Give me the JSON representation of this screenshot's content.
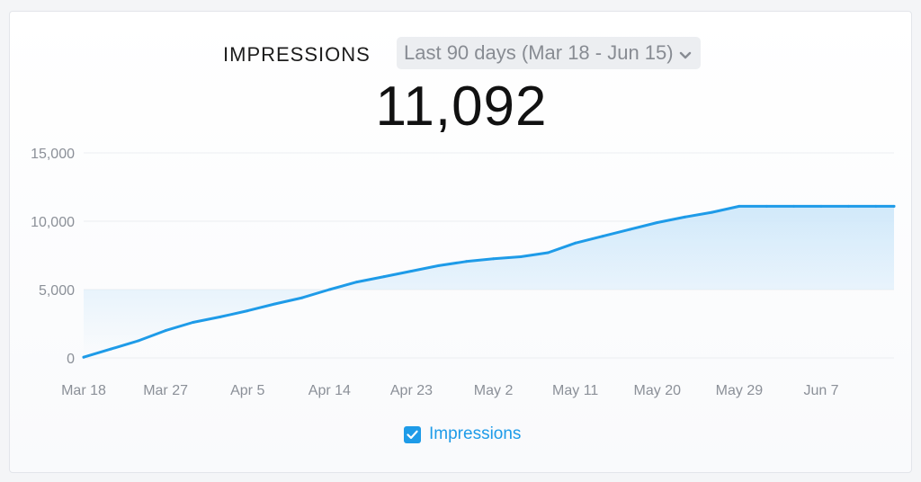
{
  "header": {
    "metric_title": "IMPRESSIONS",
    "date_range": "Last 90 days (Mar 18 - Jun 15)",
    "total_value": "11,092"
  },
  "legend": {
    "label": "Impressions",
    "checked": true,
    "icon": "checkbox-checked-icon"
  },
  "colors": {
    "series": "#1e9be8",
    "fill": "#d6ecfb",
    "grid": "#eceef1",
    "text_muted": "#8b9098"
  },
  "chart_data": {
    "type": "area",
    "title": "",
    "xlabel": "",
    "ylabel": "",
    "ylim": [
      0,
      15000
    ],
    "xlim": [
      "2024-03-18",
      "2024-06-15"
    ],
    "grid": "horizontal",
    "legend_position": "bottom-center",
    "y_ticks": [
      {
        "value": 0,
        "label": "0"
      },
      {
        "value": 5000,
        "label": "5,000"
      },
      {
        "value": 10000,
        "label": "10,000"
      },
      {
        "value": 15000,
        "label": "15,000"
      }
    ],
    "x_ticks": [
      {
        "date": "2024-03-18",
        "label": "Mar 18"
      },
      {
        "date": "2024-03-27",
        "label": "Mar 27"
      },
      {
        "date": "2024-04-05",
        "label": "Apr 5"
      },
      {
        "date": "2024-04-14",
        "label": "Apr 14"
      },
      {
        "date": "2024-04-23",
        "label": "Apr 23"
      },
      {
        "date": "2024-05-02",
        "label": "May 2"
      },
      {
        "date": "2024-05-11",
        "label": "May 11"
      },
      {
        "date": "2024-05-20",
        "label": "May 20"
      },
      {
        "date": "2024-05-29",
        "label": "May 29"
      },
      {
        "date": "2024-06-07",
        "label": "Jun 7"
      }
    ],
    "series": [
      {
        "name": "Impressions",
        "x": [
          "2024-03-18",
          "2024-03-21",
          "2024-03-24",
          "2024-03-27",
          "2024-03-30",
          "2024-04-02",
          "2024-04-05",
          "2024-04-08",
          "2024-04-11",
          "2024-04-14",
          "2024-04-17",
          "2024-04-20",
          "2024-04-23",
          "2024-04-26",
          "2024-04-29",
          "2024-05-02",
          "2024-05-05",
          "2024-05-08",
          "2024-05-11",
          "2024-05-14",
          "2024-05-17",
          "2024-05-20",
          "2024-05-23",
          "2024-05-26",
          "2024-05-29",
          "2024-06-01",
          "2024-06-04",
          "2024-06-07",
          "2024-06-10",
          "2024-06-13",
          "2024-06-15"
        ],
        "values": [
          50,
          650,
          1250,
          2000,
          2600,
          3000,
          3450,
          3950,
          4400,
          5000,
          5550,
          5950,
          6350,
          6750,
          7050,
          7250,
          7400,
          7700,
          8400,
          8900,
          9400,
          9900,
          10300,
          10650,
          11092,
          11092,
          11092,
          11092,
          11092,
          11092,
          11092
        ]
      }
    ]
  }
}
